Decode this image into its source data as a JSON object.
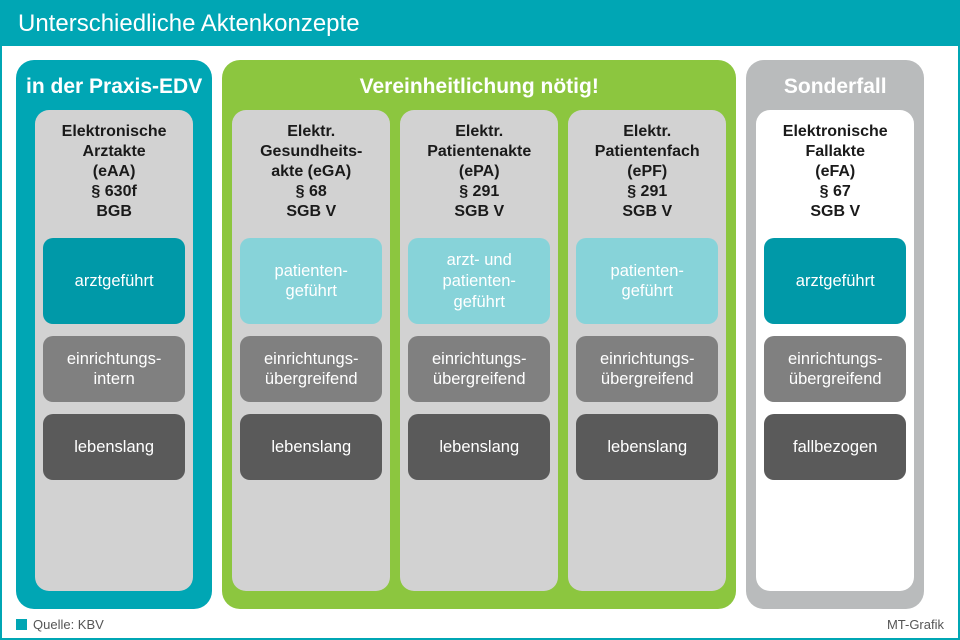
{
  "title": "Unterschiedliche Aktenkonzepte",
  "footer_source": "Quelle: KBV",
  "footer_credit": "MT-Grafik",
  "colors": {
    "teal": "#00a6b4",
    "teal_dark": "#0099a8",
    "light_teal": "#87d3d9",
    "green": "#8cc63f",
    "silver": "#b9bbbc",
    "col_bg": "#d2d2d2",
    "col_bg_white": "#ffffff",
    "cell_gray1": "#808080",
    "cell_gray2": "#5a5a5a",
    "white": "#ffffff",
    "text_dark": "#1a1a1a"
  },
  "cell_height_tall": 86,
  "cell_height_short": 66,
  "groups": [
    {
      "title": "in der\nPraxis-EDV",
      "bg": "#00a6b4",
      "columns": [
        {
          "head": "Elektronische\nArztakte\n(eAA)\n§ 630f\nBGB",
          "bg": "#d2d2d2",
          "cells": [
            {
              "text": "arztgeführt",
              "bg": "#0099a8",
              "h": 86
            },
            {
              "text": "einrichtungs-\nintern",
              "bg": "#808080",
              "h": 66
            },
            {
              "text": "lebenslang",
              "bg": "#5a5a5a",
              "h": 66
            }
          ]
        }
      ]
    },
    {
      "title": "Vereinheitlichung nötig!",
      "bg": "#8cc63f",
      "columns": [
        {
          "head": "Elektr.\nGesundheits-\nakte (eGA)\n§ 68\nSGB V",
          "bg": "#d2d2d2",
          "cells": [
            {
              "text": "patienten-\ngeführt",
              "bg": "#87d3d9",
              "h": 86
            },
            {
              "text": "einrichtungs-\nübergreifend",
              "bg": "#808080",
              "h": 66
            },
            {
              "text": "lebenslang",
              "bg": "#5a5a5a",
              "h": 66
            }
          ]
        },
        {
          "head": "Elektr.\nPatientenakte\n(ePA)\n§ 291\nSGB V",
          "bg": "#d2d2d2",
          "cells": [
            {
              "text": "arzt- und\npatienten-\ngeführt",
              "bg": "#87d3d9",
              "h": 86
            },
            {
              "text": "einrichtungs-\nübergreifend",
              "bg": "#808080",
              "h": 66
            },
            {
              "text": "lebenslang",
              "bg": "#5a5a5a",
              "h": 66
            }
          ]
        },
        {
          "head": "Elektr.\nPatientenfach\n(ePF)\n§ 291\nSGB V",
          "bg": "#d2d2d2",
          "cells": [
            {
              "text": "patienten-\ngeführt",
              "bg": "#87d3d9",
              "h": 86
            },
            {
              "text": "einrichtungs-\nübergreifend",
              "bg": "#808080",
              "h": 66
            },
            {
              "text": "lebenslang",
              "bg": "#5a5a5a",
              "h": 66
            }
          ]
        }
      ]
    },
    {
      "title": "Sonderfall",
      "bg": "#b9bbbc",
      "columns": [
        {
          "head": "Elektronische\nFallakte\n(eFA)\n§ 67\nSGB V",
          "bg": "#ffffff",
          "cells": [
            {
              "text": "arztgeführt",
              "bg": "#0099a8",
              "h": 86
            },
            {
              "text": "einrichtungs-\nübergreifend",
              "bg": "#808080",
              "h": 66
            },
            {
              "text": "fallbezogen",
              "bg": "#5a5a5a",
              "h": 66
            }
          ]
        }
      ]
    }
  ]
}
